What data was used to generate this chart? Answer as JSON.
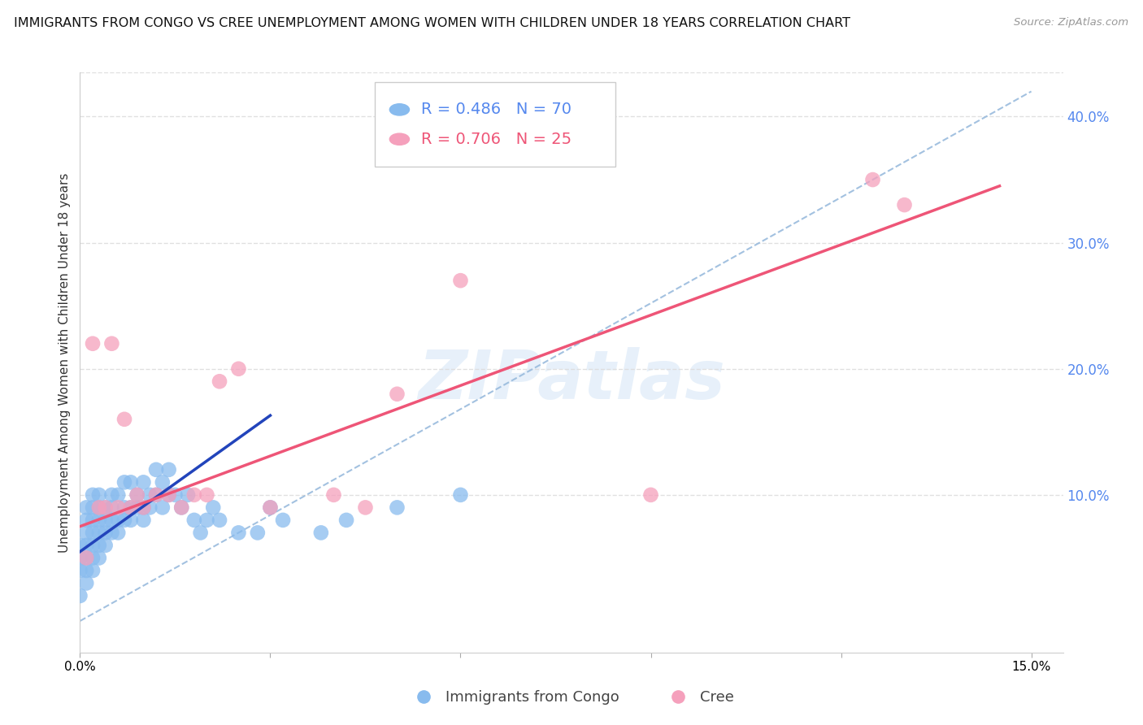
{
  "title": "IMMIGRANTS FROM CONGO VS CREE UNEMPLOYMENT AMONG WOMEN WITH CHILDREN UNDER 18 YEARS CORRELATION CHART",
  "source": "Source: ZipAtlas.com",
  "ylabel": "Unemployment Among Women with Children Under 18 years",
  "xlim": [
    0.0,
    0.155
  ],
  "ylim": [
    -0.025,
    0.435
  ],
  "right_yticks": [
    0.1,
    0.2,
    0.3,
    0.4
  ],
  "right_ytick_labels": [
    "10.0%",
    "20.0%",
    "30.0%",
    "40.0%"
  ],
  "congo_color": "#88BBEE",
  "cree_color": "#F5A0BC",
  "congo_line_color": "#2244BB",
  "cree_line_color": "#EE5577",
  "diag_line_color": "#99BBDD",
  "r_congo": 0.486,
  "n_congo": 70,
  "r_cree": 0.706,
  "n_cree": 25,
  "watermark": "ZIPatlas",
  "legend_label_congo": "Immigrants from Congo",
  "legend_label_cree": "Cree",
  "background_color": "#FFFFFF",
  "grid_color": "#DDDDDD",
  "right_axis_color": "#5588EE",
  "title_fontsize": 11.5,
  "axis_label_fontsize": 11,
  "congo_x": [
    0.0,
    0.0,
    0.0,
    0.0,
    0.001,
    0.001,
    0.001,
    0.001,
    0.001,
    0.001,
    0.001,
    0.002,
    0.002,
    0.002,
    0.002,
    0.002,
    0.002,
    0.002,
    0.003,
    0.003,
    0.003,
    0.003,
    0.003,
    0.003,
    0.004,
    0.004,
    0.004,
    0.004,
    0.005,
    0.005,
    0.005,
    0.005,
    0.006,
    0.006,
    0.006,
    0.007,
    0.007,
    0.007,
    0.008,
    0.008,
    0.008,
    0.009,
    0.009,
    0.01,
    0.01,
    0.01,
    0.011,
    0.011,
    0.012,
    0.012,
    0.013,
    0.013,
    0.014,
    0.014,
    0.015,
    0.016,
    0.017,
    0.018,
    0.019,
    0.02,
    0.021,
    0.022,
    0.025,
    0.028,
    0.03,
    0.032,
    0.038,
    0.042,
    0.05,
    0.06
  ],
  "congo_y": [
    0.02,
    0.04,
    0.05,
    0.06,
    0.04,
    0.05,
    0.06,
    0.07,
    0.08,
    0.09,
    0.03,
    0.04,
    0.05,
    0.06,
    0.07,
    0.08,
    0.09,
    0.1,
    0.05,
    0.06,
    0.07,
    0.08,
    0.09,
    0.1,
    0.06,
    0.07,
    0.08,
    0.09,
    0.07,
    0.08,
    0.09,
    0.1,
    0.07,
    0.08,
    0.1,
    0.08,
    0.09,
    0.11,
    0.08,
    0.09,
    0.11,
    0.09,
    0.1,
    0.08,
    0.09,
    0.11,
    0.09,
    0.1,
    0.1,
    0.12,
    0.09,
    0.11,
    0.1,
    0.12,
    0.1,
    0.09,
    0.1,
    0.08,
    0.07,
    0.08,
    0.09,
    0.08,
    0.07,
    0.07,
    0.09,
    0.08,
    0.07,
    0.08,
    0.09,
    0.1
  ],
  "cree_x": [
    0.001,
    0.002,
    0.003,
    0.004,
    0.005,
    0.006,
    0.007,
    0.008,
    0.009,
    0.01,
    0.012,
    0.014,
    0.016,
    0.018,
    0.02,
    0.022,
    0.025,
    0.03,
    0.04,
    0.045,
    0.05,
    0.06,
    0.09,
    0.125,
    0.13
  ],
  "cree_y": [
    0.05,
    0.22,
    0.09,
    0.09,
    0.22,
    0.09,
    0.16,
    0.09,
    0.1,
    0.09,
    0.1,
    0.1,
    0.09,
    0.1,
    0.1,
    0.19,
    0.2,
    0.09,
    0.1,
    0.09,
    0.18,
    0.27,
    0.1,
    0.35,
    0.33
  ]
}
